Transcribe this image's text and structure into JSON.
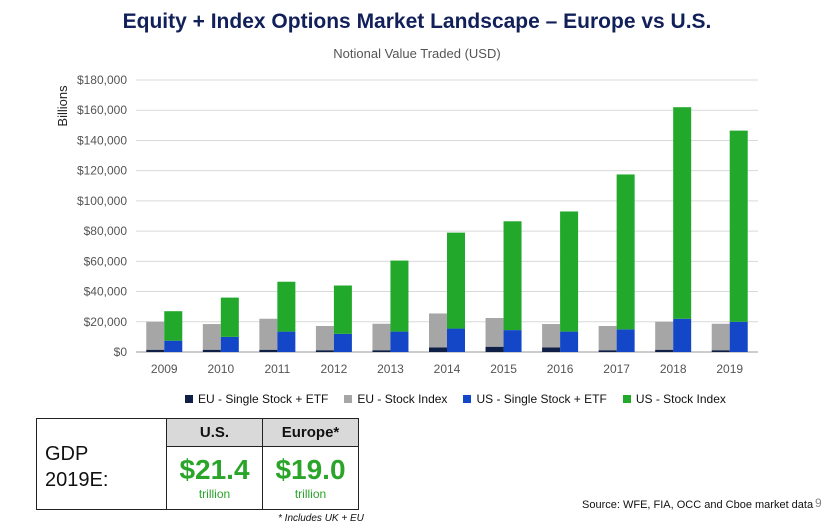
{
  "title": "Equity + Index Options Market Landscape – Europe vs U.S.",
  "colors": {
    "eu_single": "#0f1f45",
    "eu_index": "#a6a6a6",
    "us_single": "#1447c8",
    "us_index": "#22a82b",
    "axis_text": "#555555",
    "grid": "#d9d9d9"
  },
  "chart_data": {
    "type": "bar",
    "title": "Notional Value Traded (USD)",
    "ylabel": "Billions",
    "xlabel": "",
    "ylim": [
      0,
      180000
    ],
    "yticks": [
      0,
      20000,
      40000,
      60000,
      80000,
      100000,
      120000,
      140000,
      160000,
      180000
    ],
    "ytick_labels": [
      "$0",
      "$20,000",
      "$40,000",
      "$60,000",
      "$80,000",
      "$100,000",
      "$120,000",
      "$140,000",
      "$160,000",
      "$180,000"
    ],
    "categories": [
      "2009",
      "2010",
      "2011",
      "2012",
      "2013",
      "2014",
      "2015",
      "2016",
      "2017",
      "2018",
      "2019"
    ],
    "stacks": [
      {
        "name": "Europe",
        "series": [
          {
            "name": "EU - Single Stock + ETF",
            "values": [
              1500,
              1500,
              1500,
              1200,
              1200,
              3000,
              3500,
              3000,
              1200,
              1500,
              1200
            ]
          },
          {
            "name": "EU - Stock Index",
            "values": [
              18500,
              17000,
              20500,
              16000,
              17500,
              22500,
              19000,
              15500,
              16000,
              18500,
              17500
            ]
          }
        ]
      },
      {
        "name": "U.S.",
        "series": [
          {
            "name": "US - Single Stock + ETF",
            "values": [
              7500,
              10000,
              13500,
              12000,
              13500,
              15500,
              14500,
              13500,
              15000,
              22000,
              20000
            ]
          },
          {
            "name": "US - Stock Index",
            "values": [
              19500,
              26000,
              33000,
              32000,
              47000,
              63500,
              72000,
              79500,
              102500,
              140000,
              126500
            ]
          }
        ]
      }
    ],
    "legend": [
      "EU - Single Stock + ETF",
      "EU - Stock Index",
      "US - Single Stock + ETF",
      "US - Stock Index"
    ],
    "legend_position": "bottom",
    "grid": true
  },
  "gdp_table": {
    "label": "GDP 2019E:",
    "columns": [
      {
        "header": "U.S.",
        "value": "$21.4",
        "unit": "trillion"
      },
      {
        "header": "Europe*",
        "value": "$19.0",
        "unit": "trillion"
      }
    ],
    "footnote": "* Includes UK + EU"
  },
  "source": "Source: WFE, FIA, OCC and Cboe market data",
  "page_number": "9"
}
